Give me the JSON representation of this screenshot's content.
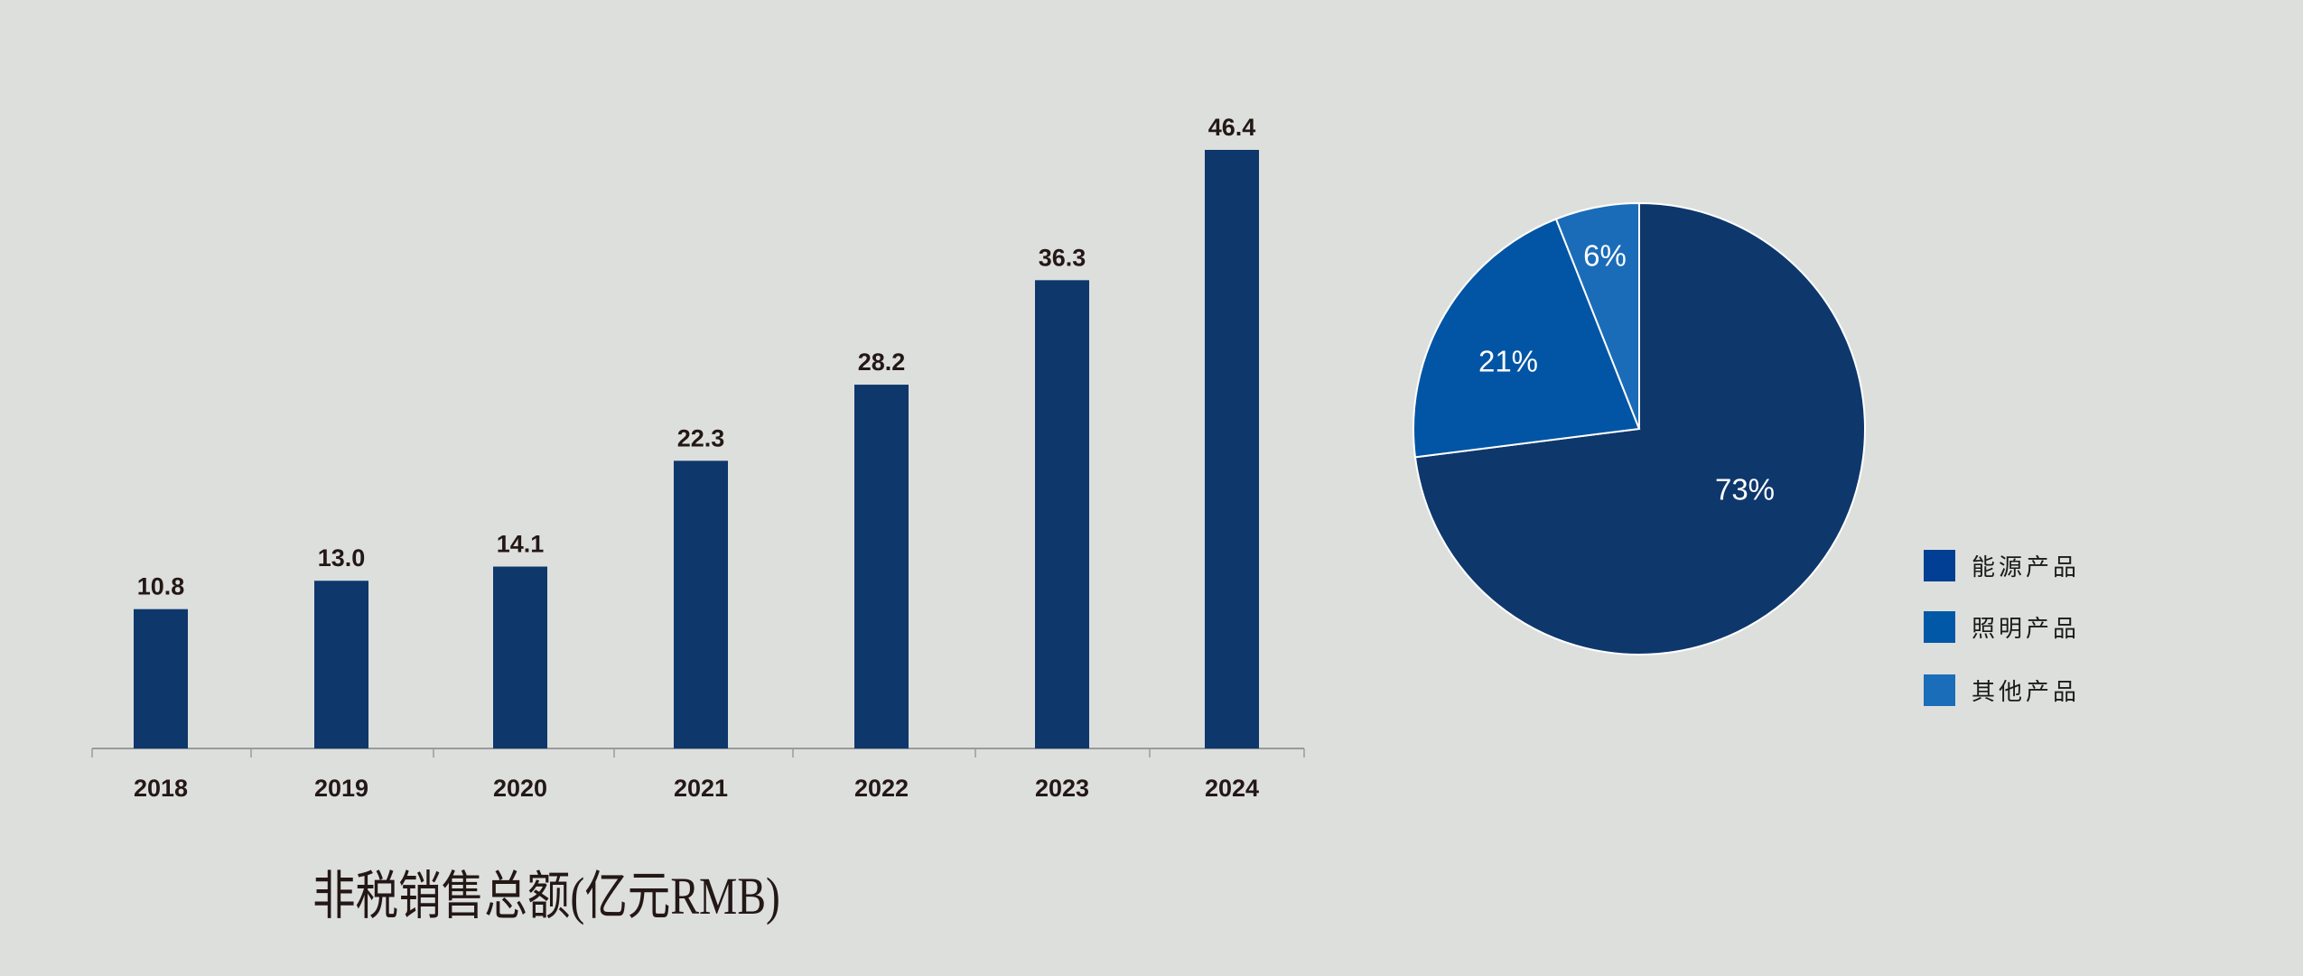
{
  "chart_data": [
    {
      "type": "bar",
      "title": "非税销售总额(亿元RMB)",
      "categories": [
        "2018",
        "2019",
        "2020",
        "2021",
        "2022",
        "2023",
        "2024"
      ],
      "values": [
        10.8,
        13.0,
        14.1,
        22.3,
        28.2,
        36.3,
        46.4
      ],
      "value_labels": [
        "10.8",
        "13.0",
        "14.1",
        "22.3",
        "28.2",
        "36.3",
        "46.4"
      ],
      "xlabel": "",
      "ylabel": "",
      "ylim": [
        0,
        46.4
      ],
      "grid": false,
      "color": "#0e376c"
    },
    {
      "type": "pie",
      "slices": [
        {
          "name": "能源产品",
          "value": 73,
          "label": "73%",
          "color": "#0e376c",
          "legend_color": "#003f93"
        },
        {
          "name": "照明产品",
          "value": 21,
          "label": "21%",
          "color": "#0255a5",
          "legend_color": "#0058a6"
        },
        {
          "name": "其他产品",
          "value": 6,
          "label": "6%",
          "color": "#1a6cb8",
          "legend_color": "#1a6db8"
        }
      ],
      "legend_position": "right"
    }
  ]
}
